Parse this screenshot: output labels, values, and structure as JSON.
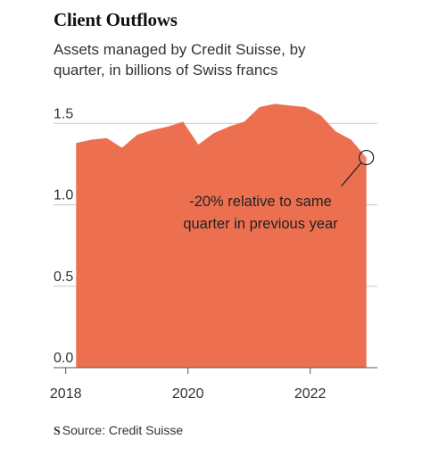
{
  "header": {
    "title": "Client Outflows",
    "subtitle": "Assets managed by Credit Suisse, by quarter, in billions of Swiss francs"
  },
  "footer": {
    "logo_mark": "S",
    "source": "Source: Credit Suisse"
  },
  "colors": {
    "area": "#ec7050",
    "grid": "#c8c8c8",
    "axis": "#555555"
  },
  "chart_data": {
    "type": "area",
    "title": "Client Outflows",
    "subtitle": "Assets managed by Credit Suisse, by quarter, in billions of Swiss francs",
    "xlabel": "",
    "ylabel": "",
    "xlim": [
      2017.8,
      2023.1
    ],
    "ylim": [
      0,
      1.6
    ],
    "x_ticks": [
      2018,
      2020,
      2022
    ],
    "x_tick_labels": [
      "2018",
      "2020",
      "2022"
    ],
    "y_ticks": [
      0,
      0.5,
      1.0,
      1.5
    ],
    "y_tick_labels": [
      "0.0",
      "0.5",
      "1.0",
      "1.5"
    ],
    "grid": true,
    "series": [
      {
        "x": [
          2018.17,
          2018.42,
          2018.67,
          2018.92,
          2019.17,
          2019.42,
          2019.67,
          2019.92,
          2020.17,
          2020.42,
          2020.67,
          2020.92,
          2021.17,
          2021.42,
          2021.67,
          2021.92,
          2022.17,
          2022.42,
          2022.67,
          2022.92
        ],
        "values": [
          1.38,
          1.4,
          1.41,
          1.35,
          1.43,
          1.46,
          1.48,
          1.51,
          1.37,
          1.44,
          1.48,
          1.51,
          1.6,
          1.62,
          1.61,
          1.6,
          1.55,
          1.45,
          1.4,
          1.29
        ]
      }
    ],
    "annotation": {
      "x": 2022.92,
      "y": 1.29,
      "text": "-20% relative to same quarter in previous year",
      "lines": [
        "-20% relative to same",
        "quarter in previous year"
      ]
    }
  }
}
